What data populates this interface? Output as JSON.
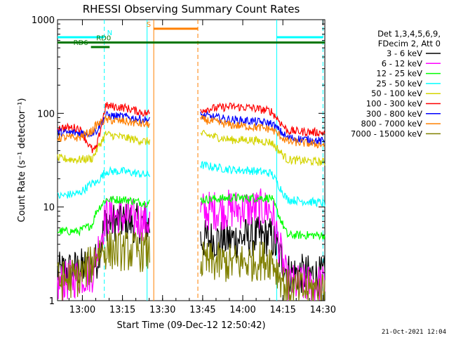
{
  "chart_data": {
    "type": "line",
    "title": "RHESSI Observing Summary Count Rates",
    "xlabel": "Start Time (09-Dec-12 12:50:42)",
    "ylabel": "Count Rate (s⁻¹ detector⁻¹)",
    "x_units": "minutes after 12:50:42",
    "xlim": [
      0,
      100
    ],
    "ylim": [
      1,
      1000
    ],
    "yscale": "log",
    "x_ticks": [
      {
        "value": 9.3,
        "label": "13:00"
      },
      {
        "value": 24.3,
        "label": "13:15"
      },
      {
        "value": 39.3,
        "label": "13:30"
      },
      {
        "value": 54.3,
        "label": "13:45"
      },
      {
        "value": 69.3,
        "label": "14:00"
      },
      {
        "value": 84.3,
        "label": "14:15"
      },
      {
        "value": 99.3,
        "label": "14:30"
      }
    ],
    "y_ticks": [
      {
        "value": 1,
        "label": "1"
      },
      {
        "value": 10,
        "label": "10"
      },
      {
        "value": 100,
        "label": "100"
      },
      {
        "value": 1000,
        "label": "1000"
      }
    ],
    "legend": {
      "placement": "right",
      "header": [
        "Det 1,3,4,5,6,9,",
        "FDecim 2, Att 0"
      ]
    },
    "series": [
      {
        "name": "3 - 6 keV",
        "color": "#000000",
        "points": [
          [
            0,
            2
          ],
          [
            8,
            2.2
          ],
          [
            13,
            2.4
          ],
          [
            14.5,
            2.6
          ],
          [
            18,
            7
          ],
          [
            25,
            7
          ],
          [
            33,
            6.5
          ],
          [
            54,
            4.5
          ],
          [
            65,
            4.5
          ],
          [
            72,
            4.8
          ],
          [
            80,
            4.8
          ],
          [
            86,
            2
          ],
          [
            100,
            1.8
          ]
        ]
      },
      {
        "name": "6 - 12 keV",
        "color": "#ff00ff",
        "points": [
          [
            0,
            1.5
          ],
          [
            8,
            1.8
          ],
          [
            13,
            2
          ],
          [
            14.5,
            3
          ],
          [
            18,
            8
          ],
          [
            25,
            8
          ],
          [
            33,
            7
          ],
          [
            54,
            9
          ],
          [
            65,
            9.5
          ],
          [
            72,
            9.5
          ],
          [
            80,
            9.5
          ],
          [
            86,
            1.5
          ],
          [
            100,
            1.5
          ]
        ]
      },
      {
        "name": "12 - 25 keV",
        "color": "#00ff00",
        "points": [
          [
            0,
            5.5
          ],
          [
            8,
            5.5
          ],
          [
            13,
            6.5
          ],
          [
            14.5,
            9
          ],
          [
            18,
            12
          ],
          [
            25,
            12
          ],
          [
            33,
            11
          ],
          [
            54,
            12
          ],
          [
            65,
            12.5
          ],
          [
            72,
            12.5
          ],
          [
            80,
            12.5
          ],
          [
            86,
            5
          ],
          [
            100,
            5
          ]
        ]
      },
      {
        "name": "25 - 50 keV",
        "color": "#00ffff",
        "points": [
          [
            0,
            13
          ],
          [
            8,
            14
          ],
          [
            13,
            18
          ],
          [
            14.5,
            18
          ],
          [
            18,
            24
          ],
          [
            25,
            24
          ],
          [
            33,
            22
          ],
          [
            54,
            28
          ],
          [
            65,
            25
          ],
          [
            72,
            24.5
          ],
          [
            80,
            23
          ],
          [
            86,
            12
          ],
          [
            100,
            11
          ]
        ]
      },
      {
        "name": "50 - 100 keV",
        "color": "#d4d400",
        "points": [
          [
            0,
            33
          ],
          [
            8,
            32
          ],
          [
            13,
            33
          ],
          [
            14.5,
            40
          ],
          [
            18,
            60
          ],
          [
            25,
            55
          ],
          [
            33,
            50
          ],
          [
            54,
            60
          ],
          [
            65,
            52
          ],
          [
            72,
            52
          ],
          [
            80,
            49
          ],
          [
            86,
            32
          ],
          [
            100,
            30
          ]
        ]
      },
      {
        "name": "100 - 300 keV",
        "color": "#ff0000",
        "points": [
          [
            0,
            70
          ],
          [
            8,
            70
          ],
          [
            13,
            40
          ],
          [
            14.5,
            42
          ],
          [
            18,
            120
          ],
          [
            25,
            115
          ],
          [
            33,
            100
          ],
          [
            54,
            110
          ],
          [
            65,
            118
          ],
          [
            72,
            115
          ],
          [
            80,
            105
          ],
          [
            86,
            65
          ],
          [
            100,
            62
          ]
        ]
      },
      {
        "name": "300 - 800 keV",
        "color": "#0000ff",
        "points": [
          [
            0,
            62
          ],
          [
            8,
            62
          ],
          [
            13,
            62
          ],
          [
            14.5,
            65
          ],
          [
            18,
            95
          ],
          [
            25,
            92
          ],
          [
            33,
            85
          ],
          [
            54,
            95
          ],
          [
            65,
            85
          ],
          [
            72,
            83
          ],
          [
            80,
            78
          ],
          [
            86,
            55
          ],
          [
            100,
            50
          ]
        ]
      },
      {
        "name": "800 - 7000 keV",
        "color": "#ff8000",
        "points": [
          [
            0,
            55
          ],
          [
            8,
            55
          ],
          [
            13,
            65
          ],
          [
            14.5,
            75
          ],
          [
            18,
            85
          ],
          [
            25,
            82
          ],
          [
            33,
            76
          ],
          [
            54,
            86
          ],
          [
            65,
            75
          ],
          [
            72,
            72
          ],
          [
            80,
            68
          ],
          [
            86,
            50
          ],
          [
            100,
            46
          ]
        ]
      },
      {
        "name": "7000 - 15000 keV",
        "color": "#808000",
        "points": [
          [
            0,
            1.6
          ],
          [
            8,
            1.8
          ],
          [
            13,
            2.5
          ],
          [
            14.5,
            3.3
          ],
          [
            18,
            3.5
          ],
          [
            25,
            3.4
          ],
          [
            33,
            3.3
          ],
          [
            54,
            2.6
          ],
          [
            65,
            2.5
          ],
          [
            72,
            2.6
          ],
          [
            80,
            2.8
          ],
          [
            86,
            1.3
          ],
          [
            100,
            1.3
          ]
        ]
      }
    ],
    "data_gaps": [
      [
        0,
        0
      ],
      [
        0,
        0
      ],
      [
        0,
        0
      ],
      [
        0,
        0
      ],
      [
        0,
        0
      ],
      [
        0,
        0
      ],
      [
        0,
        0
      ],
      [
        0,
        0
      ],
      [
        0,
        0
      ]
    ],
    "gap_ranges": [
      [
        34.5,
        53.5
      ]
    ],
    "annotations": {
      "vertical_lines": [
        {
          "x": 17.5,
          "color": "#00ffff",
          "style": "dashed"
        },
        {
          "x": 33.5,
          "color": "#00ffff",
          "style": "solid"
        },
        {
          "x": 36,
          "color": "#ff8000",
          "style": "solid"
        },
        {
          "x": 52.5,
          "color": "#ff8000",
          "style": "dashed"
        },
        {
          "x": 82,
          "color": "#00ffff",
          "style": "solid"
        },
        {
          "x": 99.3,
          "color": "#00ffff",
          "style": "dashed"
        }
      ],
      "segments": [
        {
          "x0": 0,
          "x1": 17.5,
          "y": 650,
          "color": "#00ffff",
          "label": "N"
        },
        {
          "x0": 82,
          "x1": 99.3,
          "y": 650,
          "color": "#00ffff",
          "label": ""
        },
        {
          "x0": 36,
          "x1": 52.5,
          "y": 800,
          "color": "#ff8000",
          "label": "S"
        },
        {
          "x0": 0,
          "x1": 100,
          "y": 570,
          "color": "#007700",
          "label": "RD0"
        },
        {
          "x0": 12.5,
          "x1": 19.5,
          "y": 510,
          "color": "#007700",
          "label": "RD6"
        }
      ]
    }
  },
  "footer": {
    "date_stamp": "21-Oct-2021 12:04"
  }
}
